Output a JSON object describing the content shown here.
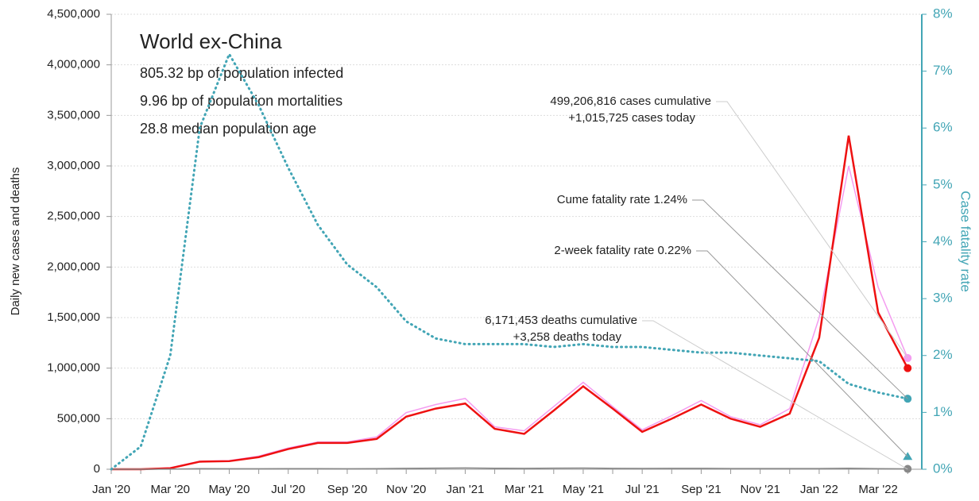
{
  "chart_data": {
    "type": "line",
    "info_title": "World ex-China",
    "info_lines": [
      "805.32 bp of population infected",
      "9.96 bp of population mortalities",
      "28.8 median population age"
    ],
    "ylabel": "Daily new cases and deaths",
    "y2label": "Case fatality rate",
    "annotations": [
      {
        "lines": [
          "499,206,816 cases cumulative",
          "+1,015,725 cases today"
        ]
      },
      {
        "lines": [
          "Cume fatality rate 1.24%"
        ]
      },
      {
        "lines": [
          "2-week fatality rate 0.22%"
        ]
      },
      {
        "lines": [
          "6,171,453 deaths cumulative",
          "+3,258 deaths today"
        ]
      }
    ],
    "categories": [
      "Jan '20",
      null,
      "Mar '20",
      null,
      "May '20",
      null,
      "Jul '20",
      null,
      "Sep '20",
      null,
      "Nov '20",
      null,
      "Jan '21",
      null,
      "Mar '21",
      null,
      "May '21",
      null,
      "Jul '21",
      null,
      "Sep '21",
      null,
      "Nov '21",
      null,
      "Jan '22",
      null,
      "Mar '22",
      null
    ],
    "series": [
      {
        "color": "#f49cf0",
        "style": "thin",
        "values": [
          0,
          0,
          15000,
          80000,
          85000,
          130000,
          210000,
          270000,
          270000,
          320000,
          560000,
          640000,
          700000,
          420000,
          380000,
          620000,
          860000,
          620000,
          390000,
          530000,
          680000,
          520000,
          440000,
          600000,
          1500000,
          3000000,
          1800000,
          1100000
        ]
      },
      {
        "color": "#ee1111",
        "style": "thick",
        "values": [
          0,
          0,
          10000,
          75000,
          80000,
          120000,
          200000,
          260000,
          260000,
          300000,
          520000,
          600000,
          650000,
          400000,
          350000,
          580000,
          820000,
          600000,
          370000,
          500000,
          640000,
          500000,
          420000,
          550000,
          1300000,
          3300000,
          1550000,
          1000000
        ]
      },
      {
        "color": "#888888",
        "style": "thin",
        "values": [
          0,
          0,
          1000,
          6000,
          5000,
          5000,
          6000,
          6000,
          5000,
          6000,
          9000,
          11000,
          13000,
          10000,
          9000,
          11000,
          12000,
          9000,
          8000,
          9000,
          9000,
          7000,
          7000,
          7000,
          7000,
          10000,
          6000,
          3500
        ]
      },
      {
        "color": "#42a5b5",
        "style": "dotted",
        "axis": "y2",
        "values": [
          0,
          0.4,
          2.0,
          6.0,
          7.3,
          6.4,
          5.3,
          4.3,
          3.6,
          3.2,
          2.6,
          2.3,
          2.2,
          2.2,
          2.2,
          2.15,
          2.2,
          2.15,
          2.15,
          2.1,
          2.05,
          2.05,
          2.0,
          1.95,
          1.9,
          1.5,
          1.35,
          1.24
        ]
      }
    ],
    "two_week_fatality_rate": 0.22,
    "ylim": [
      0,
      4500000
    ],
    "yticks": [
      0,
      {
        "value": 500000,
        "label": "500,000"
      },
      {
        "value": 1000000,
        "label": "1,000,000"
      },
      {
        "value": 1500000,
        "label": "1,500,000"
      },
      {
        "value": 2000000,
        "label": "2,000,000"
      },
      {
        "value": 2500000,
        "label": "2,500,000"
      },
      {
        "value": 3000000,
        "label": "3,000,000"
      },
      {
        "value": 3500000,
        "label": "3,500,000"
      },
      {
        "value": 4000000,
        "label": "4,000,000"
      },
      {
        "value": 4500000,
        "label": "4,500,000"
      }
    ],
    "y2lim": [
      0,
      8
    ],
    "y2ticks": [
      {
        "value": 0,
        "label": "0%"
      },
      {
        "value": 1,
        "label": "1%"
      },
      {
        "value": 2,
        "label": "2%"
      },
      {
        "value": 3,
        "label": "3%"
      },
      {
        "value": 4,
        "label": "4%"
      },
      {
        "value": 5,
        "label": "5%"
      },
      {
        "value": 6,
        "label": "6%"
      },
      {
        "value": 7,
        "label": "7%"
      },
      {
        "value": 8,
        "label": "8%"
      }
    ],
    "grid": true
  }
}
